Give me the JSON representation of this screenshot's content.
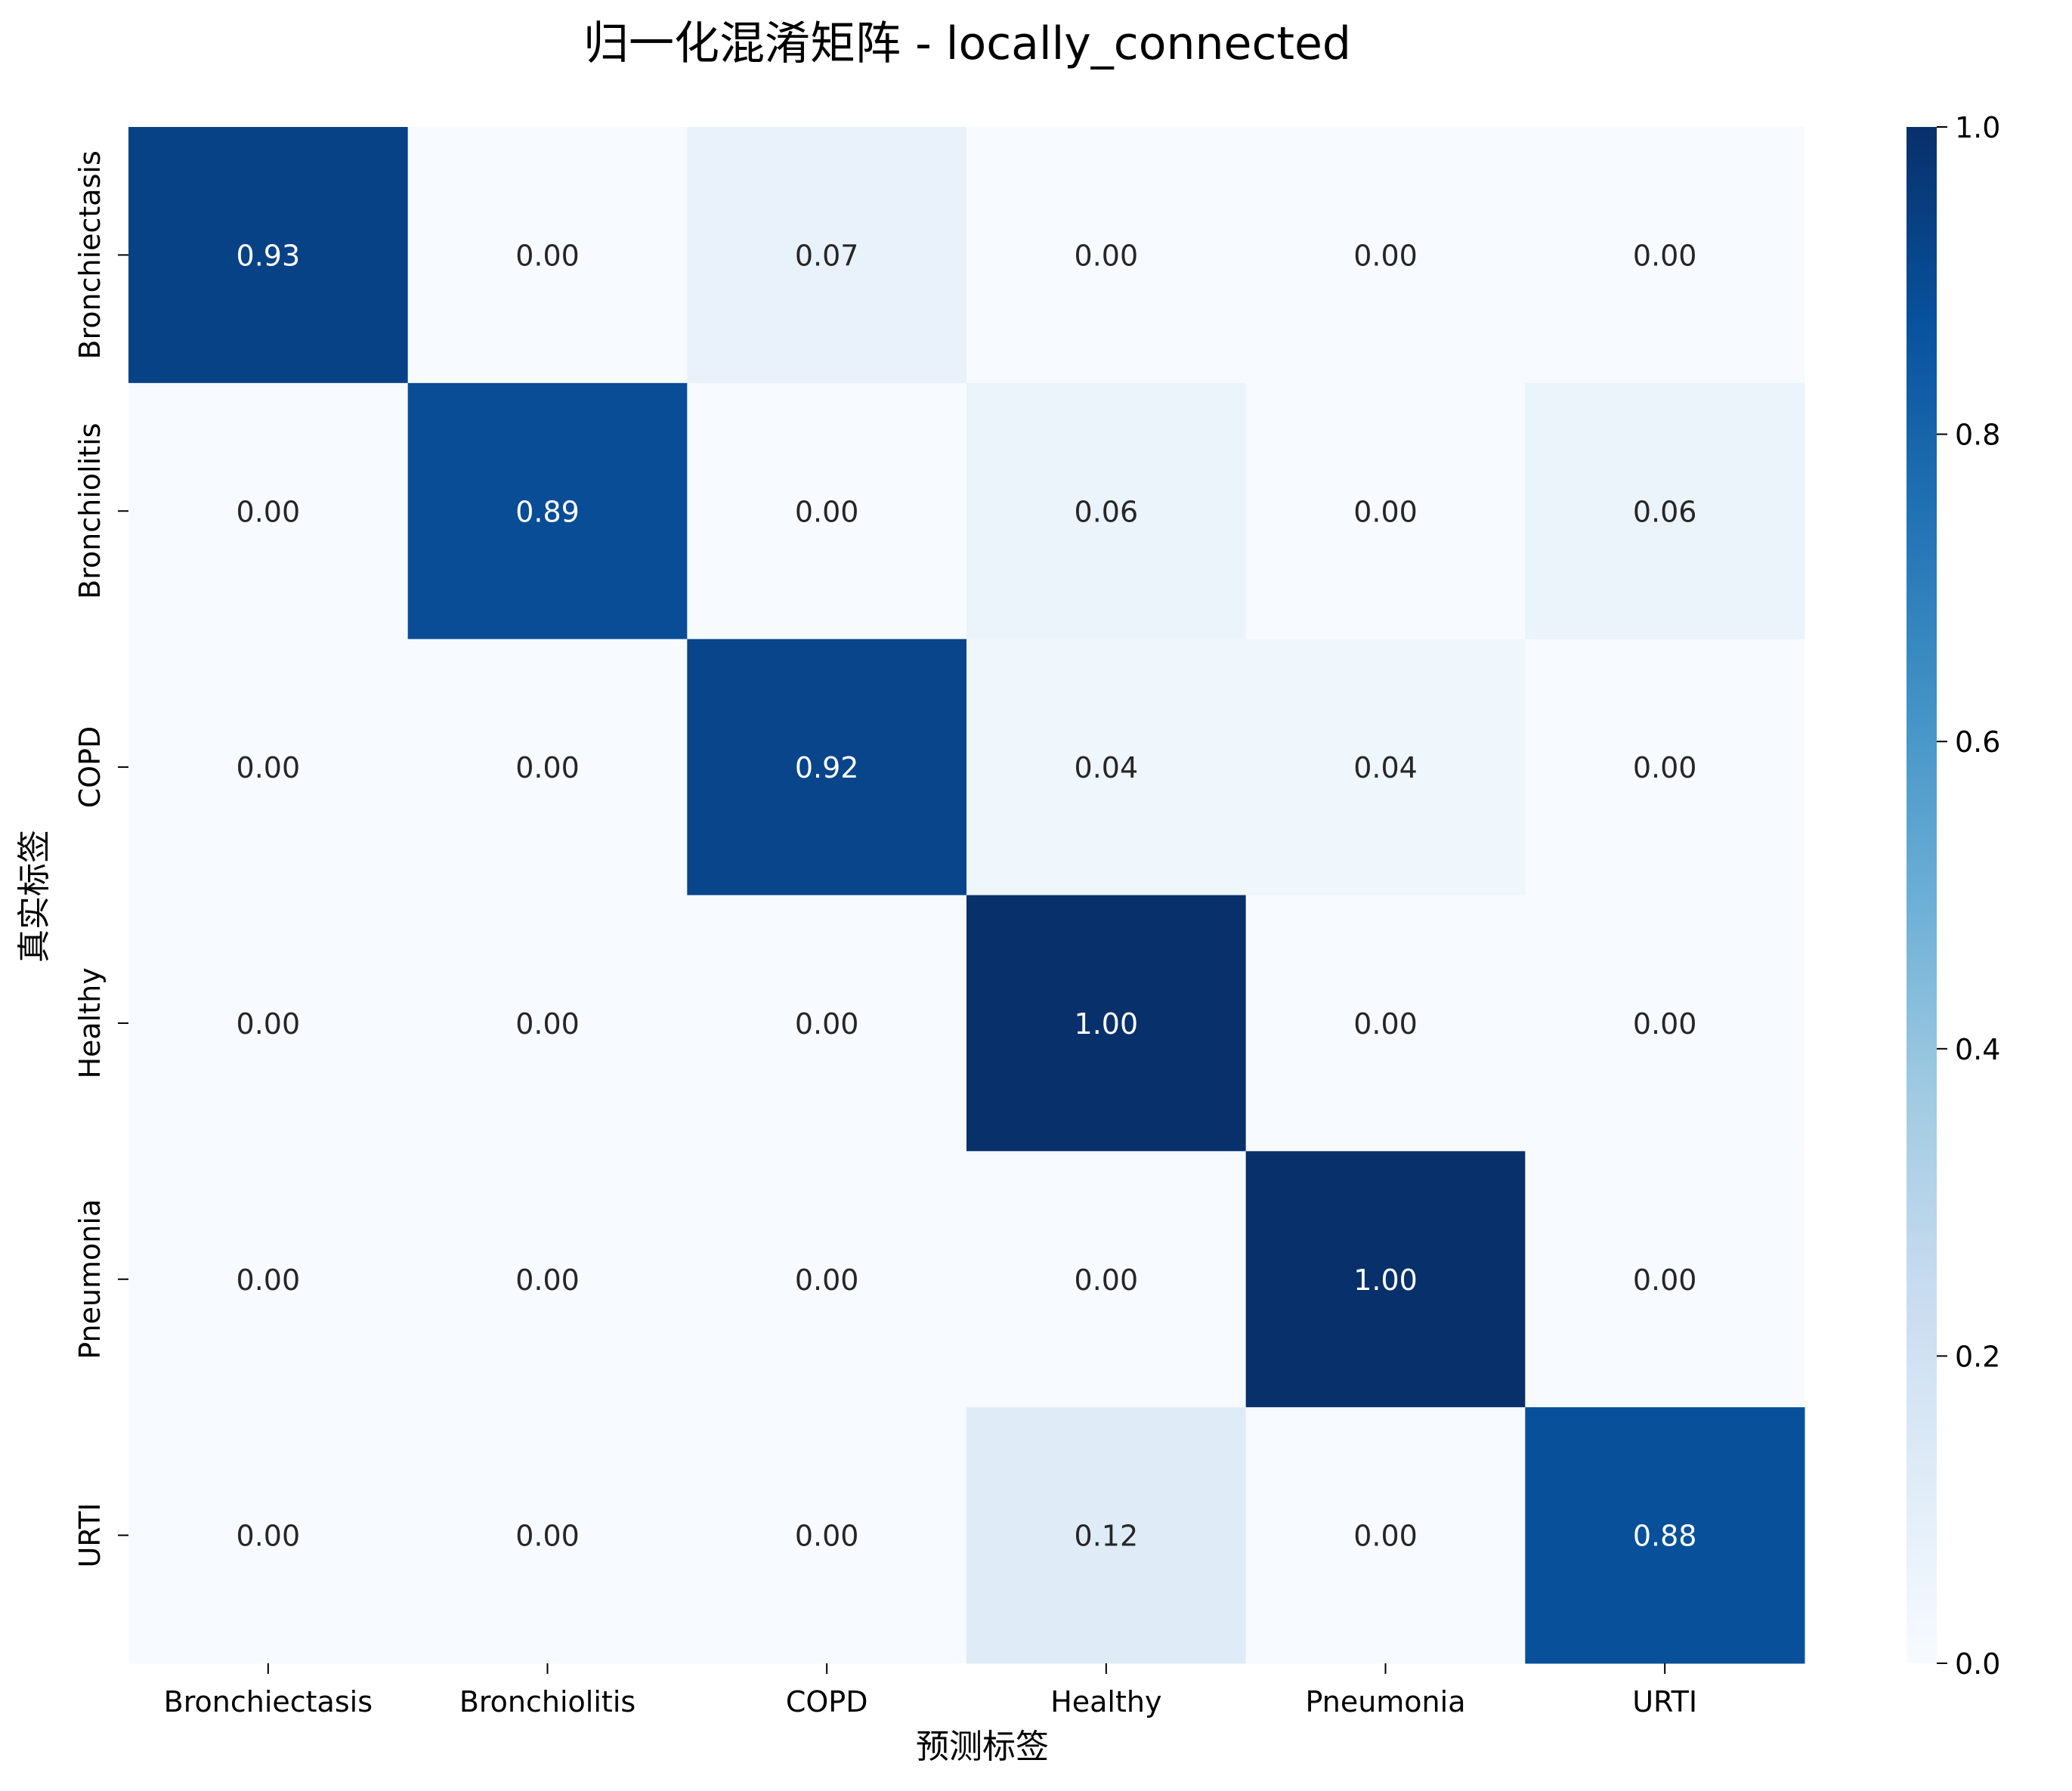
{
  "chart_data": {
    "type": "heatmap",
    "title": "归一化混淆矩阵 - locally_connected",
    "xlabel": "预测标签",
    "ylabel": "真实标签",
    "x_categories": [
      "Bronchiectasis",
      "Bronchiolitis",
      "COPD",
      "Healthy",
      "Pneumonia",
      "URTI"
    ],
    "y_categories": [
      "Bronchiectasis",
      "Bronchiolitis",
      "COPD",
      "Healthy",
      "Pneumonia",
      "URTI"
    ],
    "values": [
      [
        0.93,
        0.0,
        0.07,
        0.0,
        0.0,
        0.0
      ],
      [
        0.0,
        0.89,
        0.0,
        0.06,
        0.0,
        0.06
      ],
      [
        0.0,
        0.0,
        0.92,
        0.04,
        0.04,
        0.0
      ],
      [
        0.0,
        0.0,
        0.0,
        1.0,
        0.0,
        0.0
      ],
      [
        0.0,
        0.0,
        0.0,
        0.0,
        1.0,
        0.0
      ],
      [
        0.0,
        0.0,
        0.0,
        0.12,
        0.0,
        0.88
      ]
    ],
    "value_labels": [
      [
        "0.93",
        "0.00",
        "0.07",
        "0.00",
        "0.00",
        "0.00"
      ],
      [
        "0.00",
        "0.89",
        "0.00",
        "0.06",
        "0.00",
        "0.06"
      ],
      [
        "0.00",
        "0.00",
        "0.92",
        "0.04",
        "0.04",
        "0.00"
      ],
      [
        "0.00",
        "0.00",
        "0.00",
        "1.00",
        "0.00",
        "0.00"
      ],
      [
        "0.00",
        "0.00",
        "0.00",
        "0.00",
        "1.00",
        "0.00"
      ],
      [
        "0.00",
        "0.00",
        "0.00",
        "0.12",
        "0.00",
        "0.88"
      ]
    ],
    "colorbar": {
      "range": [
        0.0,
        1.0
      ],
      "ticks": [
        0.0,
        0.2,
        0.4,
        0.6,
        0.8,
        1.0
      ],
      "tick_labels": [
        "0.0",
        "0.2",
        "0.4",
        "0.6",
        "0.8",
        "1.0"
      ],
      "colormap": "Blues"
    },
    "grid": false
  }
}
